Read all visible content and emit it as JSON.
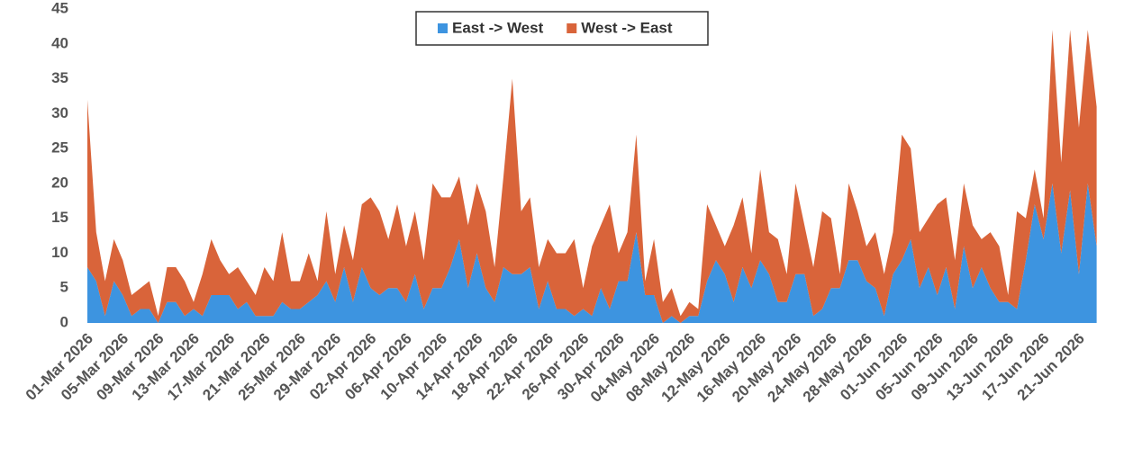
{
  "chart_data": {
    "type": "stacked_area",
    "categories": [
      "01-Mar 2026",
      null,
      null,
      null,
      "05-Mar 2026",
      null,
      null,
      null,
      "09-Mar 2026",
      null,
      null,
      null,
      "13-Mar 2026",
      null,
      null,
      null,
      "17-Mar 2026",
      null,
      null,
      null,
      "21-Mar 2026",
      null,
      null,
      null,
      "25-Mar 2026",
      null,
      null,
      null,
      "29-Mar 2026",
      null,
      null,
      null,
      "02-Apr 2026",
      null,
      null,
      null,
      "06-Apr 2026",
      null,
      null,
      null,
      "10-Apr 2026",
      null,
      null,
      null,
      "14-Apr 2026",
      null,
      null,
      null,
      "18-Apr 2026",
      null,
      null,
      null,
      "22-Apr 2026",
      null,
      null,
      null,
      "26-Apr 2026",
      null,
      null,
      null,
      "30-Apr 2026",
      null,
      null,
      null,
      "04-May 2026",
      null,
      null,
      null,
      "08-May 2026",
      null,
      null,
      null,
      "12-May 2026",
      null,
      null,
      null,
      "16-May 2026",
      null,
      null,
      null,
      "20-May 2026",
      null,
      null,
      null,
      "24-May 2026",
      null,
      null,
      null,
      "28-May 2026",
      null,
      null,
      null,
      "01-Jun 2026",
      null,
      null,
      null,
      "05-Jun 2026",
      null,
      null,
      null,
      "09-Jun 2026",
      null,
      null,
      null,
      "13-Jun 2026",
      null,
      null,
      null,
      "17-Jun 2026",
      null,
      null,
      null,
      "21-Jun 2026",
      null,
      null
    ],
    "series": [
      {
        "name": "East -> West",
        "color": "#3d94e0",
        "values": [
          8,
          6,
          1,
          6,
          4,
          1,
          2,
          2,
          0,
          3,
          3,
          1,
          2,
          1,
          4,
          4,
          4,
          2,
          3,
          1,
          1,
          1,
          3,
          2,
          2,
          3,
          4,
          6,
          3,
          8,
          3,
          8,
          5,
          4,
          5,
          5,
          3,
          7,
          2,
          5,
          5,
          8,
          12,
          5,
          10,
          5,
          3,
          8,
          7,
          7,
          8,
          2,
          6,
          2,
          2,
          1,
          2,
          1,
          5,
          2,
          6,
          6,
          13,
          4,
          4,
          0,
          1,
          0,
          1,
          1,
          6,
          9,
          7,
          3,
          8,
          5,
          9,
          7,
          3,
          3,
          7,
          7,
          1,
          2,
          5,
          5,
          9,
          9,
          6,
          5,
          1,
          7,
          9,
          12,
          5,
          8,
          4,
          8,
          2,
          11,
          5,
          8,
          5,
          3,
          3,
          2,
          9,
          17,
          12,
          20,
          10,
          19,
          7,
          20,
          11
        ]
      },
      {
        "name": "West -> East",
        "color": "#d9643a",
        "values": [
          24,
          7,
          5,
          6,
          5,
          3,
          3,
          4,
          1,
          5,
          5,
          5,
          1,
          6,
          8,
          5,
          3,
          6,
          3,
          3,
          7,
          5,
          10,
          4,
          4,
          7,
          2,
          10,
          4,
          6,
          6,
          9,
          13,
          12,
          7,
          12,
          8,
          9,
          7,
          15,
          13,
          10,
          9,
          9,
          10,
          11,
          5,
          13,
          28,
          9,
          10,
          6,
          6,
          8,
          8,
          11,
          3,
          10,
          9,
          15,
          4,
          7,
          14,
          2,
          8,
          3,
          4,
          1,
          2,
          1,
          11,
          5,
          4,
          11,
          10,
          5,
          13,
          6,
          9,
          4,
          13,
          7,
          7,
          14,
          10,
          2,
          11,
          7,
          5,
          8,
          6,
          6,
          18,
          13,
          8,
          7,
          13,
          10,
          7,
          9,
          9,
          4,
          8,
          8,
          1,
          14,
          6,
          5,
          3,
          22,
          13,
          23,
          21,
          22,
          20
        ]
      }
    ],
    "ylim": [
      0,
      45
    ],
    "yticks": [
      0,
      5,
      10,
      15,
      20,
      25,
      30,
      35,
      40,
      45
    ],
    "grid": false,
    "legend": "top"
  }
}
